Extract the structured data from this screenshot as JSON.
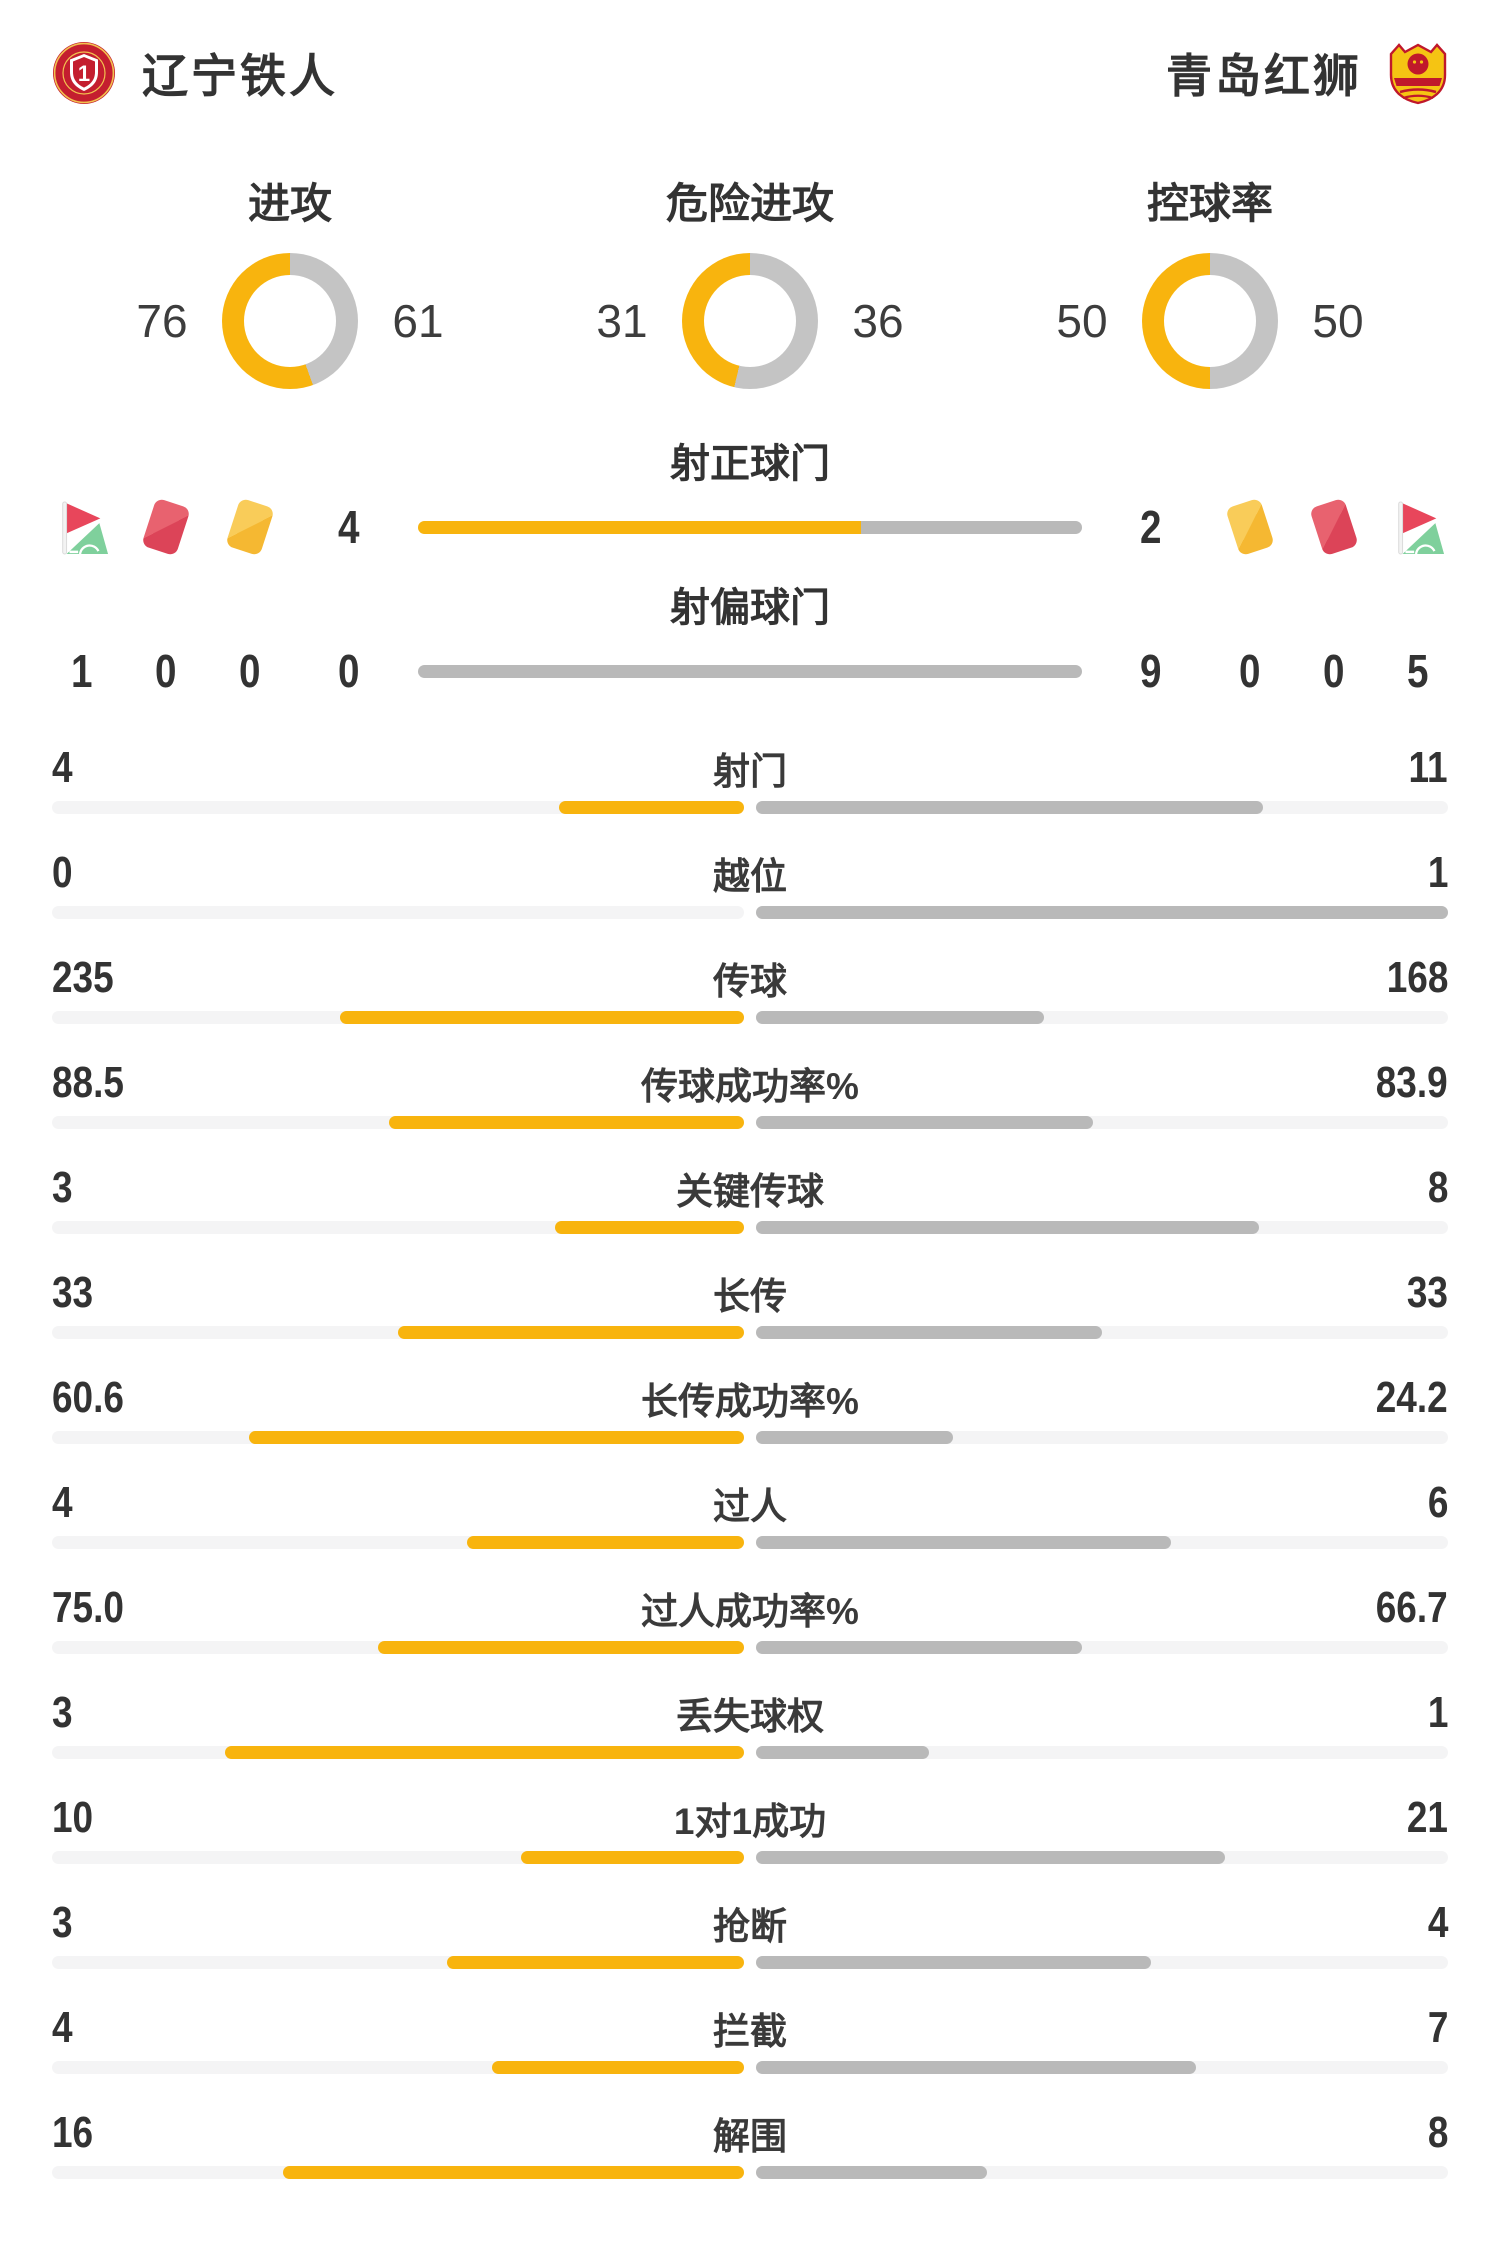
{
  "teams": {
    "home": {
      "name": "辽宁铁人",
      "badge_icon": "liaoning-tieren-crest"
    },
    "away": {
      "name": "青岛红狮",
      "badge_icon": "qingdao-red-lion-crest"
    }
  },
  "colors": {
    "home_fill": "#F8B40E",
    "away_fill": "#B9B9B9",
    "away_donut": "#C4C4C4",
    "track": "#F4F4F5",
    "text": "#333333",
    "red_card": "#DC4458",
    "yellow_card": "#F5B832",
    "flag_red": "#E8465B",
    "flag_green": "#7FD09C"
  },
  "chart_data": {
    "type": "comparison-stats",
    "legend": {
      "home_color_meaning": "辽宁铁人",
      "away_color_meaning": "青岛红狮",
      "grid": "off"
    },
    "donuts": [
      {
        "type": "donut",
        "label": "进攻",
        "home": 76,
        "away": 61
      },
      {
        "type": "donut",
        "label": "危险进攻",
        "home": 31,
        "away": 36
      },
      {
        "type": "donut",
        "label": "控球率",
        "home": 50,
        "away": 50
      }
    ],
    "discipline": {
      "icons": [
        "corner-flag",
        "red-card",
        "yellow-card"
      ],
      "home": {
        "corner_kicks": 1,
        "red_cards": 0,
        "yellow_cards": 0
      },
      "away": {
        "corner_kicks": 5,
        "red_cards": 0,
        "yellow_cards": 0
      }
    },
    "shot_bars": [
      {
        "type": "bar",
        "label": "射正球门",
        "home": 4,
        "away": 2
      },
      {
        "type": "bar",
        "label": "射偏球门",
        "home": 0,
        "away": 9
      }
    ],
    "stat_rows": {
      "type": "bar",
      "categories": [
        "射门",
        "越位",
        "传球",
        "传球成功率%",
        "关键传球",
        "长传",
        "长传成功率%",
        "过人",
        "过人成功率%",
        "丢失球权",
        "1对1成功",
        "抢断",
        "拦截",
        "解围"
      ],
      "home_values": [
        "4",
        "0",
        "235",
        "88.5",
        "3",
        "33",
        "60.6",
        "4",
        "75.0",
        "3",
        "10",
        "3",
        "4",
        "16"
      ],
      "away_values": [
        "11",
        "1",
        "168",
        "83.9",
        "8",
        "33",
        "24.2",
        "6",
        "66.7",
        "1",
        "21",
        "4",
        "7",
        "8"
      ]
    }
  }
}
